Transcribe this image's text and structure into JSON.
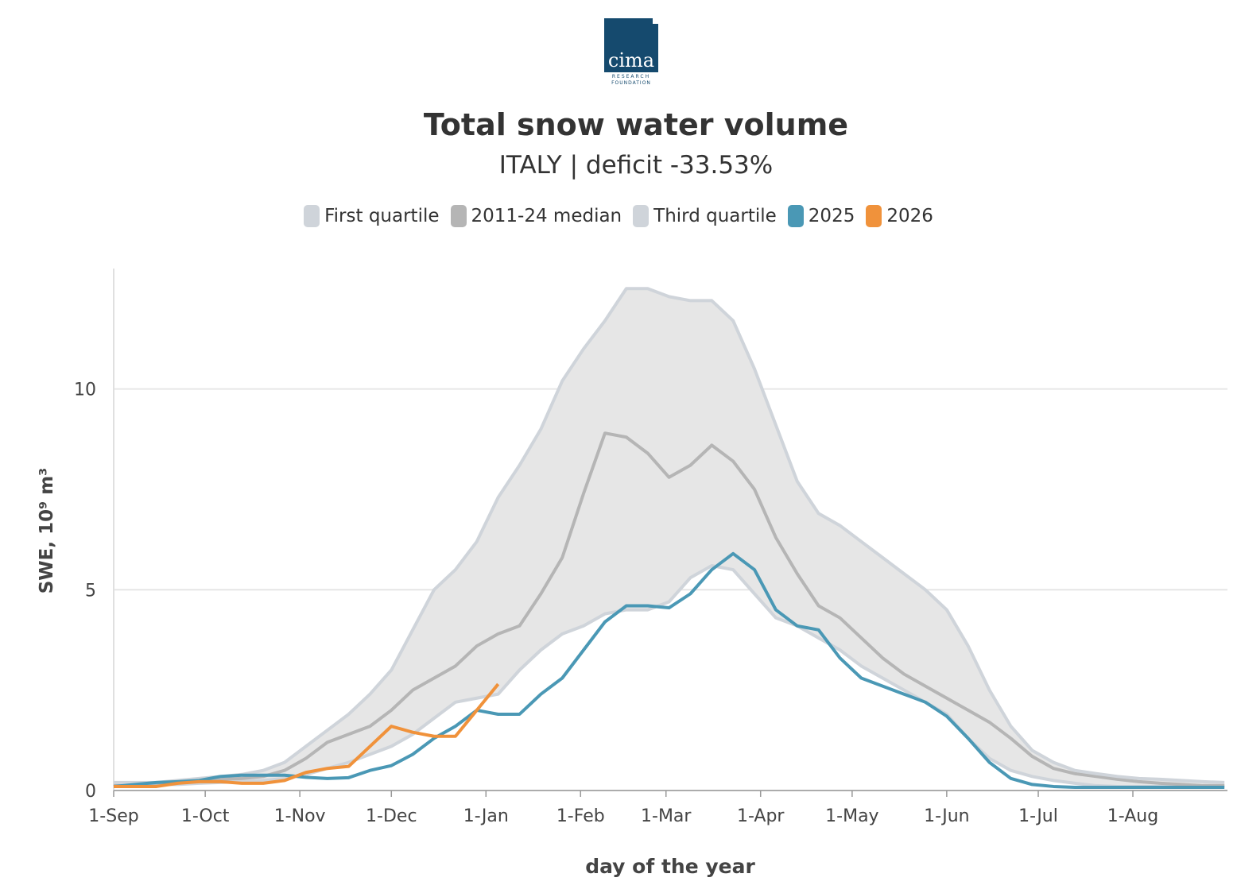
{
  "logo": {
    "text": "cima",
    "sub1": "RESEARCH",
    "sub2": "FOUNDATION"
  },
  "chart_data": {
    "type": "line",
    "title": "Total snow water volume",
    "subtitle": "ITALY | deficit -33.53%",
    "x_label": "day of the year",
    "y_label": "SWE, 10⁹ m³",
    "xlim": [
      0,
      365
    ],
    "ylim": [
      0,
      13
    ],
    "yticks": [
      0,
      5,
      10
    ],
    "xticks": [
      {
        "value": 0,
        "label": "1-Sep"
      },
      {
        "value": 30,
        "label": "1-Oct"
      },
      {
        "value": 61,
        "label": "1-Nov"
      },
      {
        "value": 91,
        "label": "1-Dec"
      },
      {
        "value": 122,
        "label": "1-Jan"
      },
      {
        "value": 153,
        "label": "1-Feb"
      },
      {
        "value": 181,
        "label": "1-Mar"
      },
      {
        "value": 212,
        "label": "1-Apr"
      },
      {
        "value": 242,
        "label": "1-May"
      },
      {
        "value": 273,
        "label": "1-Jun"
      },
      {
        "value": 303,
        "label": "1-Jul"
      },
      {
        "value": 334,
        "label": "1-Aug"
      }
    ],
    "grid": true,
    "band_color": "#e6e6e6",
    "x": [
      0,
      7,
      14,
      21,
      28,
      35,
      42,
      49,
      56,
      63,
      70,
      77,
      84,
      91,
      98,
      105,
      112,
      119,
      126,
      133,
      140,
      147,
      154,
      161,
      168,
      175,
      182,
      189,
      196,
      203,
      210,
      217,
      224,
      231,
      238,
      245,
      252,
      259,
      266,
      273,
      280,
      287,
      294,
      301,
      308,
      315,
      322,
      329,
      336,
      343,
      350,
      357,
      364
    ],
    "series": [
      {
        "name": "First quartile",
        "color": "#cfd4da",
        "values": [
          0.15,
          0.15,
          0.15,
          0.15,
          0.18,
          0.2,
          0.22,
          0.25,
          0.3,
          0.4,
          0.55,
          0.7,
          0.9,
          1.1,
          1.4,
          1.8,
          2.2,
          2.3,
          2.4,
          3.0,
          3.5,
          3.9,
          4.1,
          4.4,
          4.5,
          4.5,
          4.7,
          5.3,
          5.6,
          5.5,
          4.9,
          4.3,
          4.1,
          3.8,
          3.5,
          3.1,
          2.8,
          2.5,
          2.2,
          1.9,
          1.3,
          0.8,
          0.5,
          0.35,
          0.25,
          0.18,
          0.12,
          0.1,
          0.1,
          0.1,
          0.1,
          0.1,
          0.1
        ]
      },
      {
        "name": "2011-24 median",
        "color": "#b5b5b5",
        "values": [
          0.12,
          0.12,
          0.15,
          0.2,
          0.25,
          0.28,
          0.3,
          0.35,
          0.5,
          0.8,
          1.2,
          1.4,
          1.6,
          2.0,
          2.5,
          2.8,
          3.1,
          3.6,
          3.9,
          4.1,
          4.9,
          5.8,
          7.4,
          8.9,
          8.8,
          8.4,
          7.8,
          8.1,
          8.6,
          8.2,
          7.5,
          6.3,
          5.4,
          4.6,
          4.3,
          3.8,
          3.3,
          2.9,
          2.6,
          2.3,
          2.0,
          1.7,
          1.3,
          0.85,
          0.55,
          0.42,
          0.35,
          0.28,
          0.22,
          0.18,
          0.15,
          0.12,
          0.12
        ]
      },
      {
        "name": "Third quartile",
        "color": "#cfd4da",
        "values": [
          0.2,
          0.2,
          0.2,
          0.25,
          0.3,
          0.35,
          0.4,
          0.5,
          0.7,
          1.1,
          1.5,
          1.9,
          2.4,
          3.0,
          4.0,
          5.0,
          5.5,
          6.2,
          7.3,
          8.1,
          9.0,
          10.2,
          11.0,
          11.7,
          12.5,
          12.5,
          12.3,
          12.2,
          12.2,
          11.7,
          10.5,
          9.1,
          7.7,
          6.9,
          6.6,
          6.2,
          5.8,
          5.4,
          5.0,
          4.5,
          3.6,
          2.5,
          1.6,
          1.0,
          0.7,
          0.5,
          0.42,
          0.35,
          0.3,
          0.28,
          0.25,
          0.22,
          0.2
        ]
      },
      {
        "name": "2025",
        "color": "#4a98b5",
        "values": [
          0.1,
          0.15,
          0.2,
          0.22,
          0.25,
          0.35,
          0.38,
          0.38,
          0.38,
          0.33,
          0.3,
          0.32,
          0.5,
          0.62,
          0.9,
          1.3,
          1.6,
          2.0,
          1.9,
          1.9,
          2.4,
          2.8,
          3.5,
          4.2,
          4.6,
          4.6,
          4.55,
          4.9,
          5.5,
          5.9,
          5.5,
          4.5,
          4.1,
          4.0,
          3.3,
          2.8,
          2.6,
          2.4,
          2.2,
          1.85,
          1.3,
          0.7,
          0.3,
          0.15,
          0.1,
          0.08,
          0.08,
          0.08,
          0.08,
          0.08,
          0.08,
          0.08,
          0.08
        ]
      },
      {
        "name": "2026",
        "color": "#f0923b",
        "values": [
          0.1,
          0.1,
          0.1,
          0.18,
          0.22,
          0.22,
          0.18,
          0.18,
          0.25,
          0.45,
          0.55,
          0.6,
          1.1,
          1.6,
          1.45,
          1.35,
          1.35,
          2.0,
          2.65,
          null,
          null,
          null,
          null,
          null,
          null,
          null,
          null,
          null,
          null,
          null,
          null,
          null,
          null,
          null,
          null,
          null,
          null,
          null,
          null,
          null,
          null,
          null,
          null,
          null,
          null,
          null,
          null,
          null,
          null,
          null,
          null,
          null,
          null
        ]
      }
    ]
  }
}
